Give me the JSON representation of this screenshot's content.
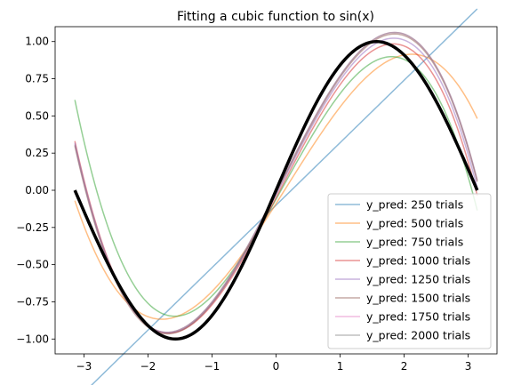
{
  "chart_data": {
    "type": "line",
    "title": "Fitting a cubic function to sin(x)",
    "xlabel": "",
    "ylabel": "",
    "xlim": [
      -3.45,
      3.45
    ],
    "ylim": [
      -1.1,
      1.1
    ],
    "x_ticks": [
      -3,
      -2,
      -1,
      0,
      1,
      2,
      3
    ],
    "x_tick_labels": [
      "−3",
      "−2",
      "−1",
      "0",
      "1",
      "2",
      "3"
    ],
    "y_ticks": [
      -1.0,
      -0.75,
      -0.5,
      -0.25,
      0.0,
      0.25,
      0.5,
      0.75,
      1.0
    ],
    "y_tick_labels": [
      "−1.00",
      "−0.75",
      "−0.50",
      "−0.25",
      "0.00",
      "0.25",
      "0.50",
      "0.75",
      "1.00"
    ],
    "grid": false,
    "legend_position": "lower-right",
    "x_sampling": {
      "start": -3.1416,
      "end": 3.1416
    },
    "series": [
      {
        "name": "y_pred: 250 trials",
        "color": "#1f77b4",
        "alpha": 0.5,
        "line_width": 1.5,
        "coeffs": [
          -0.1,
          0.42,
          0.0,
          0.0
        ],
        "peak": {
          "x": 3.14,
          "y": 0.93
        },
        "trough": {
          "x": -1.2,
          "y": -0.98
        }
      },
      {
        "name": "y_pred: 500 trials",
        "color": "#ff7f0e",
        "alpha": 0.5,
        "line_width": 1.5,
        "coeffs": [
          -0.09,
          0.68,
          0.03,
          -0.06
        ],
        "peak": {
          "x": 2.62,
          "y": 0.64
        },
        "trough": {
          "x": -1.5,
          "y": -1.0
        }
      },
      {
        "name": "y_pred: 750 trials",
        "color": "#2ca02c",
        "alpha": 0.5,
        "line_width": 1.5,
        "coeffs": [
          -0.06,
          0.77,
          0.03,
          -0.09
        ],
        "peak": {
          "x": 2.1,
          "y": 0.72
        },
        "trough": {
          "x": -1.6,
          "y": -1.0
        }
      },
      {
        "name": "y_pred: 1000 trials",
        "color": "#d62728",
        "alpha": 0.5,
        "line_width": 1.5,
        "coeffs": [
          -0.05,
          0.83,
          0.02,
          -0.09
        ],
        "peak": {
          "x": 1.95,
          "y": 0.82
        },
        "trough": {
          "x": -1.6,
          "y": -1.0
        }
      },
      {
        "name": "y_pred: 1250 trials",
        "color": "#9467bd",
        "alpha": 0.5,
        "line_width": 1.5,
        "coeffs": [
          -0.03,
          0.84,
          0.02,
          -0.09
        ],
        "peak": {
          "x": 1.85,
          "y": 0.88
        },
        "trough": {
          "x": -1.6,
          "y": -1.0
        }
      },
      {
        "name": "y_pred: 1500 trials",
        "color": "#8c564b",
        "alpha": 0.5,
        "line_width": 1.5,
        "coeffs": [
          -0.02,
          0.85,
          0.02,
          -0.09
        ],
        "peak": {
          "x": 1.8,
          "y": 0.92
        },
        "trough": {
          "x": -1.6,
          "y": -1.0
        }
      },
      {
        "name": "y_pred: 1750 trials",
        "color": "#e377c2",
        "alpha": 0.5,
        "line_width": 1.5,
        "coeffs": [
          -0.01,
          0.85,
          0.02,
          -0.09
        ],
        "peak": {
          "x": 1.75,
          "y": 0.96
        },
        "trough": {
          "x": -1.6,
          "y": -1.0
        }
      },
      {
        "name": "y_pred: 2000 trials",
        "color": "#7f7f7f",
        "alpha": 0.5,
        "line_width": 1.5,
        "coeffs": [
          -0.01,
          0.85,
          0.02,
          -0.09
        ],
        "peak": {
          "x": 1.75,
          "y": 0.96
        },
        "trough": {
          "x": -1.6,
          "y": -1.0
        }
      }
    ],
    "reference": {
      "label": "sin(x)",
      "color": "#000000",
      "line_width": 3.5,
      "function": "sin"
    }
  }
}
